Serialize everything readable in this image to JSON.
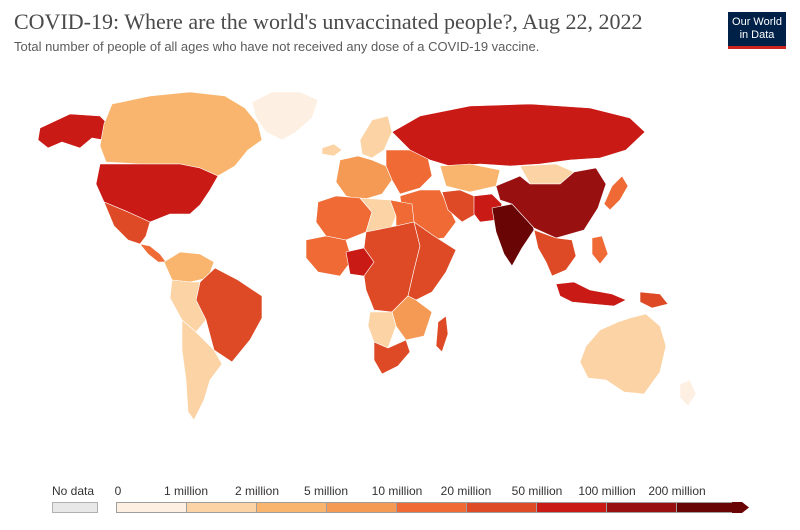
{
  "title": "COVID-19: Where are the world's unvaccinated people?, Aug 22, 2022",
  "subtitle": "Total number of people of all ages who have not received any dose of a COVID-19 vaccine.",
  "logo": {
    "line1": "Our World",
    "line2": "in Data"
  },
  "legend": {
    "no_data_label": "No data",
    "no_data_color": "#e8e8e8",
    "bins": [
      {
        "label": "0",
        "color": "#fdefe2"
      },
      {
        "label": "1 million",
        "color": "#fbd3a4"
      },
      {
        "label": "2 million",
        "color": "#f9b56e"
      },
      {
        "label": "5 million",
        "color": "#f59a55"
      },
      {
        "label": "10 million",
        "color": "#ef6a34"
      },
      {
        "label": "20 million",
        "color": "#de4a26"
      },
      {
        "label": "50 million",
        "color": "#c91a16"
      },
      {
        "label": "100 million",
        "color": "#981010"
      },
      {
        "label": "200 million",
        "color": "#6a0505"
      }
    ]
  },
  "regions": [
    {
      "name": "canada",
      "color": "#f9b56e"
    },
    {
      "name": "alaska",
      "color": "#c91a16"
    },
    {
      "name": "greenland",
      "color": "#fdefe2"
    },
    {
      "name": "united-states",
      "color": "#c91a16"
    },
    {
      "name": "mexico",
      "color": "#de4a26"
    },
    {
      "name": "central-america",
      "color": "#ef6a34"
    },
    {
      "name": "colombia-venezuela",
      "color": "#f9b56e"
    },
    {
      "name": "brazil",
      "color": "#de4a26"
    },
    {
      "name": "peru-bolivia",
      "color": "#fbd3a4"
    },
    {
      "name": "argentina-chile",
      "color": "#fbd3a4"
    },
    {
      "name": "iceland",
      "color": "#fbd3a4"
    },
    {
      "name": "scandinavia",
      "color": "#fbd3a4"
    },
    {
      "name": "western-europe",
      "color": "#f59a55"
    },
    {
      "name": "eastern-europe",
      "color": "#ef6a34"
    },
    {
      "name": "russia",
      "color": "#c91a16"
    },
    {
      "name": "kazakhstan",
      "color": "#f9b56e"
    },
    {
      "name": "middle-east",
      "color": "#ef6a34"
    },
    {
      "name": "iran",
      "color": "#de4a26"
    },
    {
      "name": "pakistan-afghanistan",
      "color": "#c91a16"
    },
    {
      "name": "india",
      "color": "#6a0505"
    },
    {
      "name": "mongolia",
      "color": "#fbd3a4"
    },
    {
      "name": "china",
      "color": "#981010"
    },
    {
      "name": "japan",
      "color": "#ef6a34"
    },
    {
      "name": "southeast-asia",
      "color": "#de4a26"
    },
    {
      "name": "philippines",
      "color": "#ef6a34"
    },
    {
      "name": "indonesia",
      "color": "#c91a16"
    },
    {
      "name": "papua-new-guinea",
      "color": "#de4a26"
    },
    {
      "name": "north-africa",
      "color": "#ef6a34"
    },
    {
      "name": "algeria-libya",
      "color": "#fbd3a4"
    },
    {
      "name": "egypt",
      "color": "#ef6a34"
    },
    {
      "name": "west-africa",
      "color": "#ef6a34"
    },
    {
      "name": "nigeria",
      "color": "#c91a16"
    },
    {
      "name": "central-africa",
      "color": "#de4a26"
    },
    {
      "name": "east-africa",
      "color": "#de4a26"
    },
    {
      "name": "southern-africa",
      "color": "#f59a55"
    },
    {
      "name": "namibia-botswana",
      "color": "#fbd3a4"
    },
    {
      "name": "south-africa",
      "color": "#de4a26"
    },
    {
      "name": "madagascar",
      "color": "#de4a26"
    },
    {
      "name": "australia",
      "color": "#fbd3a4"
    },
    {
      "name": "new-zealand",
      "color": "#fdefe2"
    }
  ]
}
